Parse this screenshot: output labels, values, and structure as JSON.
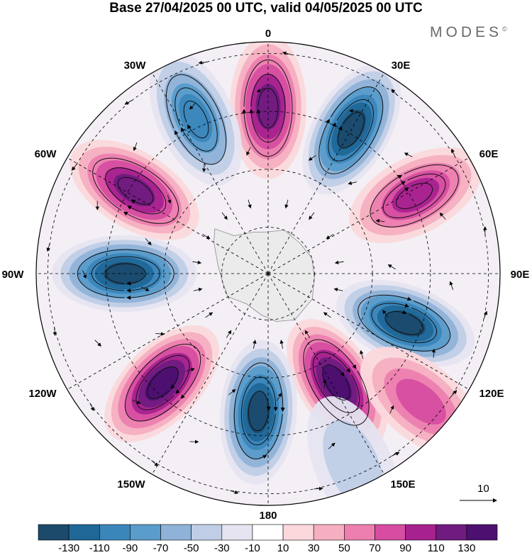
{
  "title": "Base 27/04/2025 00 UTC, valid 04/05/2025 00 UTC",
  "brand": {
    "name": "MODES",
    "mark": "©"
  },
  "longitude_labels": {
    "top": "0",
    "top_right": "30E",
    "right_upper": "60E",
    "right": "90E",
    "right_lower": "120E",
    "bottom_right": "150E",
    "bottom": "180",
    "bottom_left": "150W",
    "left_lower": "120W",
    "left": "90W",
    "left_upper": "60W",
    "top_left": "30W"
  },
  "reference_vector": {
    "label": "10"
  },
  "colorbar": {
    "ticks": [
      "-130",
      "-110",
      "-90",
      "-70",
      "-50",
      "-30",
      "-10",
      "10",
      "30",
      "50",
      "70",
      "90",
      "110",
      "130"
    ],
    "colors": [
      "#1b4a6b",
      "#1f6797",
      "#3a86bb",
      "#5a9ccb",
      "#8fb2d8",
      "#bfcde6",
      "#e5e4f0",
      "#ffffff",
      "#fbd8dc",
      "#f6afc0",
      "#ec7fb0",
      "#d64da1",
      "#a7228f",
      "#6f1b7f",
      "#4b1070"
    ]
  },
  "anomaly_centers": [
    {
      "lon": 0,
      "lat_from_pole": 0.72,
      "sign": "positive",
      "strength": 0.85
    },
    {
      "lon": 30,
      "lat_from_pole": 0.72,
      "sign": "negative",
      "strength": 0.95
    },
    {
      "lon": 62,
      "lat_from_pole": 0.72,
      "sign": "positive",
      "strength": 0.75
    },
    {
      "lon": 110,
      "lat_from_pole": 0.63,
      "sign": "negative",
      "strength": 0.95
    },
    {
      "lon": 148,
      "lat_from_pole": 0.56,
      "sign": "positive",
      "strength": 0.95
    },
    {
      "lon": 184,
      "lat_from_pole": 0.6,
      "sign": "negative",
      "strength": 0.95
    },
    {
      "lon": 224,
      "lat_from_pole": 0.66,
      "sign": "positive",
      "strength": 0.95
    },
    {
      "lon": 270,
      "lat_from_pole": 0.62,
      "sign": "negative",
      "strength": 0.95
    },
    {
      "lon": 302,
      "lat_from_pole": 0.68,
      "sign": "positive",
      "strength": 0.85
    },
    {
      "lon": 335,
      "lat_from_pole": 0.74,
      "sign": "negative",
      "strength": 0.7
    },
    {
      "lon": 130,
      "lat_from_pole": 0.86,
      "sign": "positive",
      "strength": 0.55
    },
    {
      "lon": 156,
      "lat_from_pole": 0.9,
      "sign": "negative",
      "strength": 0.25
    }
  ]
}
